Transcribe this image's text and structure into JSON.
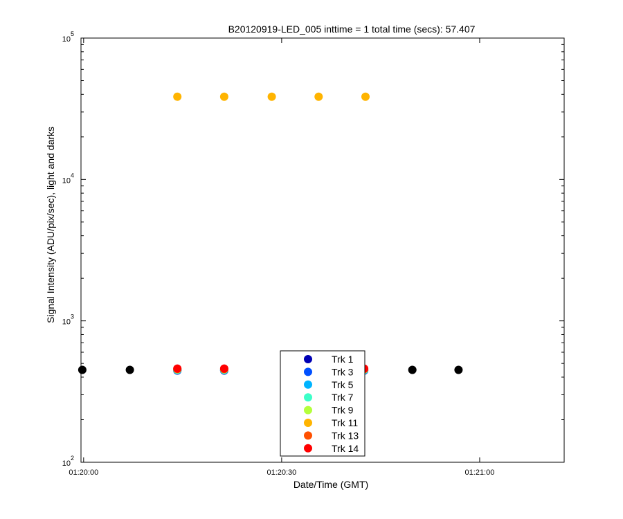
{
  "chart_data": {
    "type": "scatter",
    "title": "B20120919-LED_005 inttime = 1 total time (secs): 57.407",
    "xlabel": "Date/Time (GMT)",
    "ylabel": "Signal Intensity (ADU/pix/sec), light and darks",
    "yscale": "log",
    "ylim": [
      100,
      100000
    ],
    "y_ticks": [
      {
        "value": 100,
        "base": "10",
        "exp": "2"
      },
      {
        "value": 1000,
        "base": "10",
        "exp": "3"
      },
      {
        "value": 10000,
        "base": "10",
        "exp": "4"
      },
      {
        "value": 100000,
        "base": "10",
        "exp": "5"
      }
    ],
    "xlim": [
      "01:19:59.6",
      "01:21:12.8"
    ],
    "x_ticks": [
      "01:20:00",
      "01:20:30",
      "01:21:00"
    ],
    "grid": false,
    "legend_position": "bottom-center",
    "series": [
      {
        "name": "Trk 1",
        "color": "#0000b4",
        "x": [
          "01:20:14.2",
          "01:20:21.3",
          "01:20:42.5"
        ],
        "y": [
          445,
          445,
          445
        ]
      },
      {
        "name": "Trk 3",
        "color": "#0050ff",
        "x": [
          "01:20:14.2",
          "01:20:21.3",
          "01:20:42.5"
        ],
        "y": [
          447,
          447,
          447
        ]
      },
      {
        "name": "Trk 5",
        "color": "#00b4ff",
        "x": [
          "01:20:14.2",
          "01:20:21.3",
          "01:20:42.5"
        ],
        "y": [
          449,
          449,
          449
        ]
      },
      {
        "name": "Trk 7",
        "color": "#3cffc8",
        "x": [
          "01:20:14.2",
          "01:20:21.3",
          "01:20:42.5"
        ],
        "y": [
          451,
          451,
          451
        ]
      },
      {
        "name": "Trk 9",
        "color": "#b4ff3c",
        "x": [
          "01:20:14.2",
          "01:20:21.3",
          "01:20:42.5"
        ],
        "y": [
          453,
          453,
          453
        ]
      },
      {
        "name": "Trk 11",
        "color": "#ffb400",
        "x": [
          "01:20:14.2",
          "01:20:21.3",
          "01:20:28.5",
          "01:20:35.6",
          "01:20:42.7"
        ],
        "y": [
          38500,
          38500,
          38500,
          38500,
          38500
        ]
      },
      {
        "name": "Trk 13",
        "color": "#ff5000",
        "x": [
          "01:20:14.2",
          "01:20:21.3",
          "01:20:42.5"
        ],
        "y": [
          457,
          457,
          457
        ]
      },
      {
        "name": "Trk 14",
        "color": "#ff0000",
        "x": [
          "01:20:14.2",
          "01:20:21.3",
          "01:20:42.5"
        ],
        "y": [
          460,
          460,
          460
        ]
      },
      {
        "color": "#000000",
        "x": [
          "01:19:59.8",
          "01:20:07.0",
          "01:20:49.8",
          "01:20:56.8"
        ],
        "y": [
          450,
          450,
          450,
          450
        ]
      }
    ]
  }
}
